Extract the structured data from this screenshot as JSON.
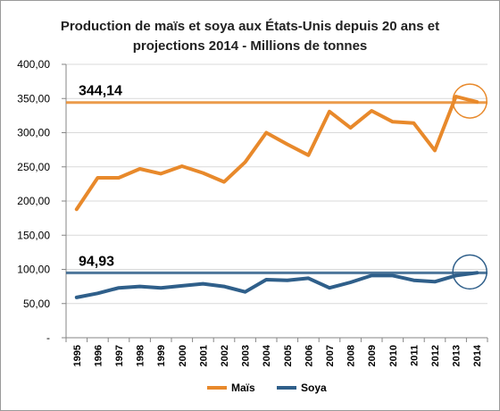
{
  "chart_data": {
    "type": "line",
    "title_lines": [
      "Production de maïs et soya aux États-Unis depuis 20 ans et",
      "projections 2014 - Millions de tonnes"
    ],
    "categories": [
      "1995",
      "1996",
      "1997",
      "1998",
      "1999",
      "2000",
      "2001",
      "2002",
      "2003",
      "2004",
      "2005",
      "2006",
      "2007",
      "2008",
      "2009",
      "2010",
      "2011",
      "2012",
      "2013",
      "2014"
    ],
    "y_tick_labels": [
      "-",
      "50,00",
      "100,00",
      "150,00",
      "200,00",
      "250,00",
      "300,00",
      "350,00",
      "400,00"
    ],
    "ylim": [
      0,
      400
    ],
    "grid": true,
    "legend_position": "bottom",
    "series": [
      {
        "name": "Maïs",
        "color": "#E8892B",
        "values": [
          188,
          234,
          234,
          247,
          240,
          251,
          241,
          228,
          257,
          300,
          283,
          267,
          331,
          307,
          332,
          316,
          314,
          274,
          353,
          345
        ]
      },
      {
        "name": "Soya",
        "color": "#2F5F8A",
        "values": [
          59,
          65,
          73,
          75,
          73,
          76,
          79,
          75,
          67,
          85,
          84,
          87,
          73,
          81,
          91,
          91,
          84,
          82,
          91,
          95
        ]
      }
    ],
    "reference_lines": [
      {
        "label": "344,14",
        "value": 344.14,
        "color": "#E8892B",
        "series": "Maïs"
      },
      {
        "label": "94,93",
        "value": 94.93,
        "color": "#2F5F8A",
        "series": "Soya"
      }
    ],
    "colors": {
      "grid": "#D9D9D9",
      "axis": "#868686",
      "frame": "#9A9A9A"
    }
  }
}
